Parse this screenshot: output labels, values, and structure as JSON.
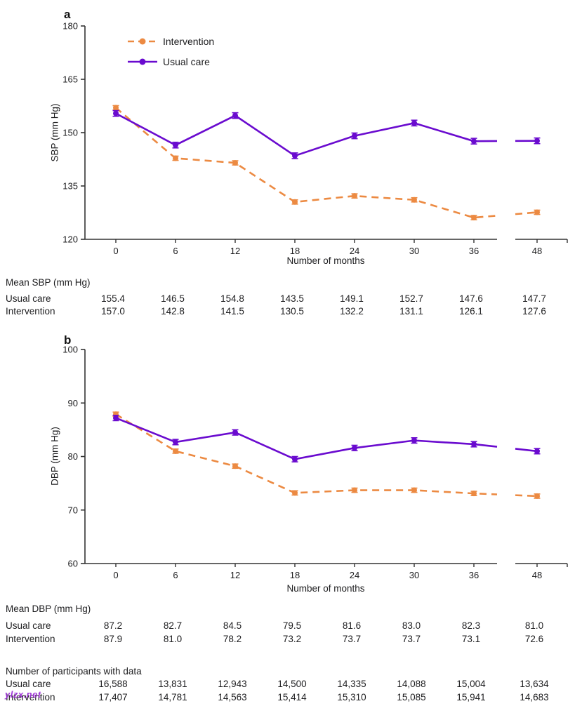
{
  "panel_labels": [
    "a",
    "b"
  ],
  "watermark": "ylzx.net",
  "colors": {
    "intervention": "#EC8A42",
    "usual_care": "#6A0BCF",
    "axis": "#333333",
    "text": "#1d1d1f"
  },
  "chart_data": [
    {
      "type": "line",
      "panel": "a",
      "xlabel": "Number of months",
      "ylabel": "SBP (mm Hg)",
      "x": [
        0,
        6,
        12,
        18,
        24,
        30,
        36,
        48
      ],
      "ylim": [
        120,
        180
      ],
      "yticks": [
        120,
        135,
        150,
        165,
        180
      ],
      "x_axis_break_between": [
        36,
        48
      ],
      "grid": false,
      "legend_position": "top-left-inside",
      "legend": [
        "Intervention",
        "Usual care"
      ],
      "error_bars": true,
      "series": [
        {
          "name": "Intervention",
          "color": "#EC8A42",
          "line_style": "dashed",
          "marker": "circle",
          "se": 0.6,
          "values": [
            157.0,
            142.8,
            141.5,
            130.5,
            132.2,
            131.1,
            126.1,
            127.6
          ]
        },
        {
          "name": "Usual care",
          "color": "#6A0BCF",
          "line_style": "solid",
          "marker": "circle",
          "se": 0.8,
          "values": [
            155.4,
            146.5,
            154.8,
            143.5,
            149.1,
            152.7,
            147.6,
            147.7
          ]
        }
      ]
    },
    {
      "type": "line",
      "panel": "b",
      "xlabel": "Number of months",
      "ylabel": "DBP (mm Hg)",
      "x": [
        0,
        6,
        12,
        18,
        24,
        30,
        36,
        48
      ],
      "ylim": [
        60,
        100
      ],
      "yticks": [
        60,
        70,
        80,
        90,
        100
      ],
      "x_axis_break_between": [
        36,
        48
      ],
      "grid": false,
      "legend_position": "none",
      "legend": [],
      "error_bars": true,
      "series": [
        {
          "name": "Intervention",
          "color": "#EC8A42",
          "line_style": "dashed",
          "marker": "circle",
          "se": 0.4,
          "values": [
            87.9,
            81.0,
            78.2,
            73.2,
            73.7,
            73.7,
            73.1,
            72.6
          ]
        },
        {
          "name": "Usual care",
          "color": "#6A0BCF",
          "line_style": "solid",
          "marker": "circle",
          "se": 0.5,
          "values": [
            87.2,
            82.7,
            84.5,
            79.5,
            81.6,
            83.0,
            82.3,
            81.0
          ]
        }
      ]
    }
  ],
  "tables": [
    {
      "title": "Mean SBP (mm Hg)",
      "columns": [
        "0",
        "6",
        "12",
        "18",
        "24",
        "30",
        "36",
        "48"
      ],
      "rows": [
        {
          "label": "Usual care",
          "values": [
            "155.4",
            "146.5",
            "154.8",
            "143.5",
            "149.1",
            "152.7",
            "147.6",
            "147.7"
          ]
        },
        {
          "label": "Intervention",
          "values": [
            "157.0",
            "142.8",
            "141.5",
            "130.5",
            "132.2",
            "131.1",
            "126.1",
            "127.6"
          ]
        }
      ]
    },
    {
      "title": "Mean DBP (mm Hg)",
      "columns": [
        "0",
        "6",
        "12",
        "18",
        "24",
        "30",
        "36",
        "48"
      ],
      "rows": [
        {
          "label": "Usual care",
          "values": [
            "87.2",
            "82.7",
            "84.5",
            "79.5",
            "81.6",
            "83.0",
            "82.3",
            "81.0"
          ]
        },
        {
          "label": "Intervention",
          "values": [
            "87.9",
            "81.0",
            "78.2",
            "73.2",
            "73.7",
            "73.7",
            "73.1",
            "72.6"
          ]
        }
      ]
    },
    {
      "title": "Number of participants with data",
      "columns": [
        "0",
        "6",
        "12",
        "18",
        "24",
        "30",
        "36",
        "48"
      ],
      "rows": [
        {
          "label": "Usual care",
          "values": [
            "16,588",
            "13,831",
            "12,943",
            "14,500",
            "14,335",
            "14,088",
            "15,004",
            "13,634"
          ]
        },
        {
          "label": "Intervention",
          "values": [
            "17,407",
            "14,781",
            "14,563",
            "15,414",
            "15,310",
            "15,085",
            "15,941",
            "14,683"
          ]
        }
      ]
    }
  ]
}
